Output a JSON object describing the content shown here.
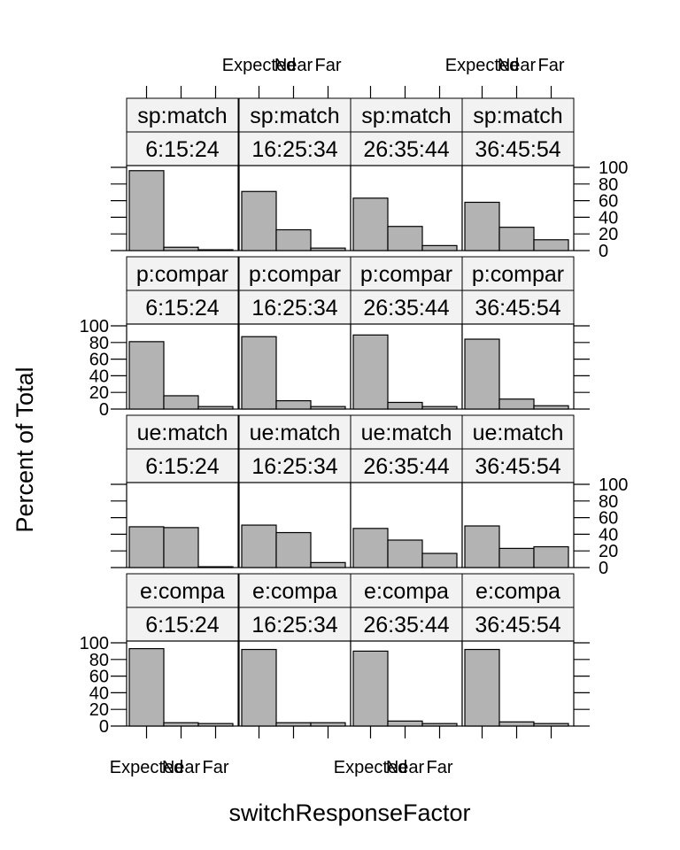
{
  "chart_data": {
    "type": "bar",
    "xlabel": "switchResponseFactor",
    "ylabel": "Percent of Total",
    "categories": [
      "Expected",
      "Near",
      "Far"
    ],
    "yticks": [
      0,
      20,
      40,
      60,
      80,
      100
    ],
    "ylim": [
      0,
      100
    ],
    "grid": false,
    "colors": {
      "bar_fill": "#b3b3b3",
      "strip_fill": "#f2f2f2"
    },
    "col_strips": [
      "6:15:24",
      "16:25:34",
      "26:35:44",
      "36:45:54"
    ],
    "rows": [
      {
        "row_strip": "sp:match",
        "values": [
          [
            96,
            4,
            1
          ],
          [
            71,
            25,
            3
          ],
          [
            63,
            29,
            6
          ],
          [
            58,
            28,
            13
          ]
        ]
      },
      {
        "row_strip": "p:compar",
        "values": [
          [
            81,
            16,
            3
          ],
          [
            87,
            10,
            3
          ],
          [
            89,
            8,
            3
          ],
          [
            84,
            12,
            4
          ]
        ]
      },
      {
        "row_strip": "ue:match",
        "values": [
          [
            49,
            48,
            1
          ],
          [
            51,
            42,
            6
          ],
          [
            47,
            33,
            17
          ],
          [
            50,
            23,
            25
          ]
        ]
      },
      {
        "row_strip": "e:compa",
        "values": [
          [
            93,
            4,
            3
          ],
          [
            92,
            4,
            4
          ],
          [
            90,
            6,
            3
          ],
          [
            92,
            5,
            3
          ]
        ]
      }
    ]
  }
}
